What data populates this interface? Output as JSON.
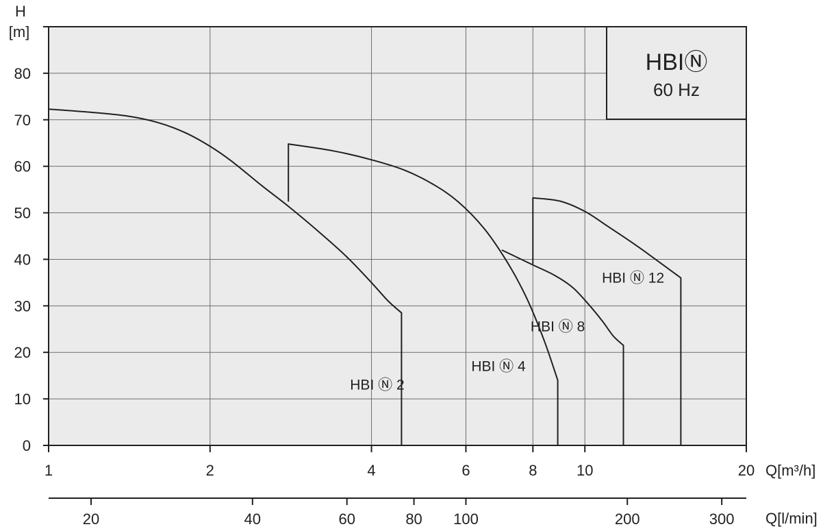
{
  "chart_data": {
    "type": "line",
    "title": "HBIⓃ",
    "subtitle": "60 Hz",
    "x_axis": {
      "label": "Q[m³/h]",
      "scale": "log",
      "range": [
        1,
        20
      ],
      "ticks": [
        1,
        2,
        4,
        6,
        8,
        10,
        20
      ],
      "tick_labels": [
        "1",
        "2",
        "4",
        "6",
        "8",
        "10",
        "20"
      ]
    },
    "x2_axis": {
      "label": "Q[l/min]",
      "scale": "log",
      "ticks": [
        20,
        40,
        60,
        80,
        100,
        200,
        300
      ],
      "tick_labels": [
        "20",
        "40",
        "60",
        "80",
        "100",
        "200",
        "300"
      ]
    },
    "y_axis": {
      "label_line1": "H",
      "label_line2": "[m]",
      "range": [
        0,
        90
      ],
      "ticks": [
        0,
        10,
        20,
        30,
        40,
        50,
        60,
        70,
        80
      ],
      "tick_labels": [
        "0",
        "10",
        "20",
        "30",
        "40",
        "50",
        "60",
        "70",
        "80"
      ]
    },
    "grid": true,
    "series": [
      {
        "name": "HBI Ⓝ 2",
        "x": [
          1.0,
          1.2,
          1.4,
          1.6,
          1.8,
          2.0,
          2.2,
          2.5,
          2.8,
          3.2,
          3.6,
          4.0,
          4.3,
          4.55,
          4.55
        ],
        "y": [
          72.3,
          71.6,
          70.8,
          69.4,
          67.2,
          64.3,
          61.0,
          55.8,
          51.4,
          45.8,
          40.5,
          35.0,
          31.0,
          28.5,
          0
        ]
      },
      {
        "name": "HBI Ⓝ 4",
        "x": [
          2.8,
          2.8,
          3.4,
          4.0,
          4.6,
          5.2,
          5.8,
          6.5,
          7.2,
          7.8,
          8.4,
          8.9,
          8.9
        ],
        "y": [
          52.4,
          64.8,
          63.3,
          61.4,
          59.2,
          56.2,
          52.4,
          46.5,
          39.0,
          31.5,
          22.5,
          14.0,
          0
        ]
      },
      {
        "name": "HBI Ⓝ 8",
        "x": [
          7.0,
          8.0,
          8.8,
          9.5,
          10.2,
          10.8,
          11.3,
          11.8,
          11.8
        ],
        "y": [
          42.0,
          38.8,
          36.5,
          33.9,
          30.1,
          26.6,
          23.5,
          21.5,
          0
        ]
      },
      {
        "name": "HBI Ⓝ 12",
        "x": [
          8.0,
          8.0,
          9.0,
          10.0,
          11.0,
          12.5,
          13.8,
          15.1,
          15.1
        ],
        "y": [
          39.0,
          53.2,
          52.5,
          50.3,
          47.2,
          42.9,
          39.3,
          36.0,
          0
        ]
      }
    ],
    "series_labels": [
      "HBI Ⓝ 2",
      "HBI Ⓝ 4",
      "HBI Ⓝ 8",
      "HBI Ⓝ 12"
    ]
  }
}
